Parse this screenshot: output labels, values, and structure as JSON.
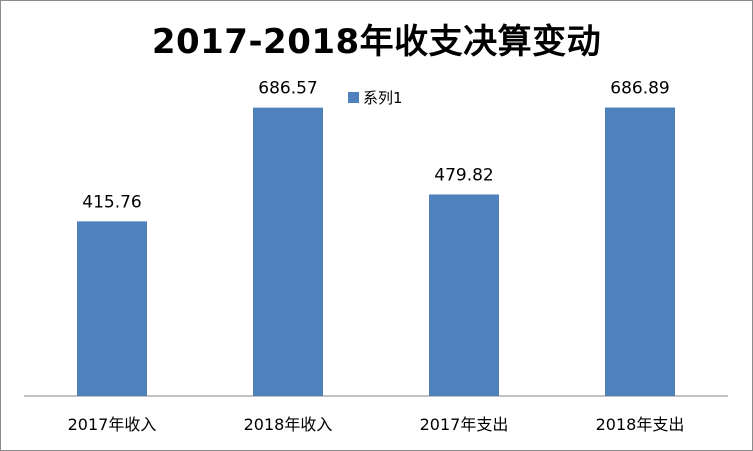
{
  "chart_data": {
    "type": "bar",
    "title": "2017-2018年收支决算变动",
    "categories": [
      "2017年收入",
      "2018年收入",
      "2017年支出",
      "2018年支出"
    ],
    "series": [
      {
        "name": "系列1",
        "values": [
          415.76,
          686.57,
          479.82,
          686.89
        ],
        "labels": [
          "415.76",
          "686.57",
          "479.82",
          "686.89"
        ]
      }
    ],
    "ylim": [
      0,
      900
    ],
    "grid": false,
    "legend_position": "top",
    "bar_color": "#4f81bd"
  }
}
